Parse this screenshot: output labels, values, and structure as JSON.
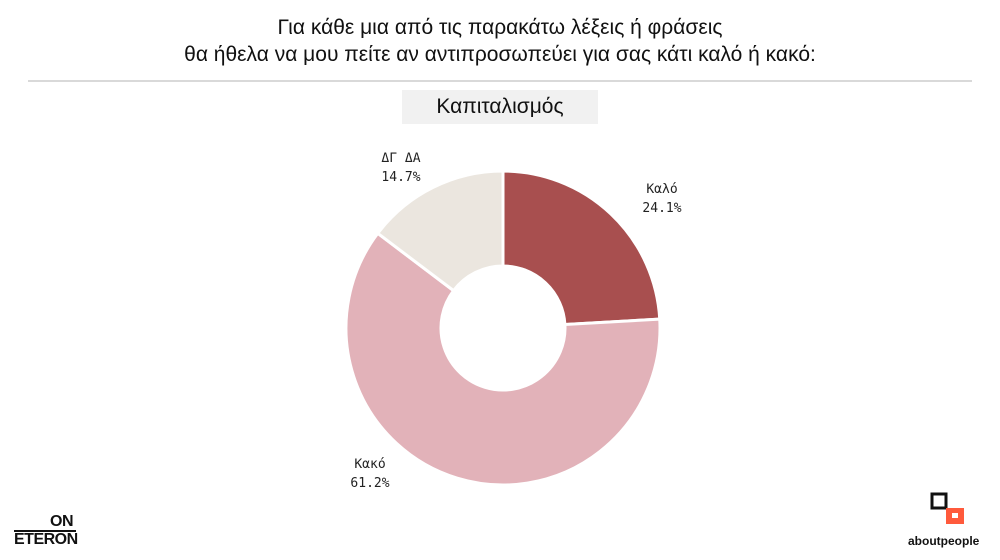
{
  "header": {
    "title_line1": "Για κάθε μια από τις παρακάτω λέξεις ή φράσεις",
    "title_line2": "θα ήθελα να μου πείτε αν αντιπροσωπεύει για σας κάτι καλό ή κακό:",
    "subtitle": "Καπιταλισμός"
  },
  "chart_data": {
    "type": "pie",
    "title": "Καπιταλισμός",
    "donut": true,
    "slices": [
      {
        "label": "Καλό",
        "value": 24.1,
        "value_label": "24.1%",
        "color": "#a84f4f"
      },
      {
        "label": "Κακό",
        "value": 61.2,
        "value_label": "61.2%",
        "color": "#e2b2b9"
      },
      {
        "label": "ΔΓ ΔΑ",
        "value": 14.7,
        "value_label": "14.7%",
        "color": "#ebe6df"
      }
    ]
  },
  "logos": {
    "left_top": "ON",
    "left_bottom": "ETERON",
    "right_word_a": "about",
    "right_word_b": "people",
    "right_mark_color": "#ff5a3c"
  }
}
